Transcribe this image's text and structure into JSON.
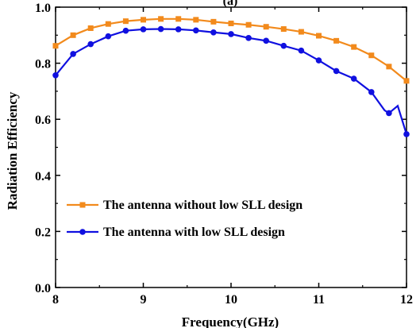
{
  "chart_data": {
    "type": "line",
    "title": "(a)",
    "xlabel": "Frequency(GHz)",
    "ylabel": "Radiation Efficiency",
    "xlim": [
      8,
      12
    ],
    "ylim": [
      0.0,
      1.0
    ],
    "xticks": [
      8,
      9,
      10,
      11,
      12
    ],
    "xtick_labels": [
      "8",
      "9",
      "10",
      "11",
      "12"
    ],
    "yticks": [
      0.0,
      0.2,
      0.4,
      0.6,
      0.8,
      1.0
    ],
    "ytick_labels": [
      "0.0",
      "0.2",
      "0.4",
      "0.6",
      "0.8",
      "1.0"
    ],
    "grid": false,
    "legend_position": "lower-left",
    "series": [
      {
        "name": "The antenna without low SLL design",
        "color": "#f28a1c",
        "marker": "square",
        "x": [
          8.0,
          8.2,
          8.4,
          8.6,
          8.8,
          9.0,
          9.2,
          9.4,
          9.6,
          9.8,
          10.0,
          10.2,
          10.4,
          10.6,
          10.8,
          11.0,
          11.2,
          11.4,
          11.6,
          11.8,
          12.0
        ],
        "y": [
          0.862,
          0.9,
          0.925,
          0.94,
          0.95,
          0.955,
          0.958,
          0.958,
          0.955,
          0.948,
          0.942,
          0.937,
          0.93,
          0.922,
          0.912,
          0.898,
          0.88,
          0.858,
          0.828,
          0.788,
          0.737
        ]
      },
      {
        "name": "The antenna with low SLL design",
        "color": "#1010e0",
        "marker": "circle",
        "x": [
          8.0,
          8.2,
          8.4,
          8.6,
          8.8,
          9.0,
          9.2,
          9.4,
          9.6,
          9.8,
          10.0,
          10.2,
          10.4,
          10.6,
          10.8,
          11.0,
          11.2,
          11.4,
          11.6,
          11.75,
          11.8,
          11.9,
          12.0
        ],
        "y": [
          0.757,
          0.833,
          0.868,
          0.896,
          0.916,
          0.921,
          0.922,
          0.921,
          0.917,
          0.91,
          0.904,
          0.89,
          0.88,
          0.862,
          0.845,
          0.81,
          0.772,
          0.745,
          0.697,
          0.632,
          0.622,
          0.648,
          0.547
        ],
        "marker_skip_x": [
          11.75,
          11.9
        ]
      }
    ]
  }
}
